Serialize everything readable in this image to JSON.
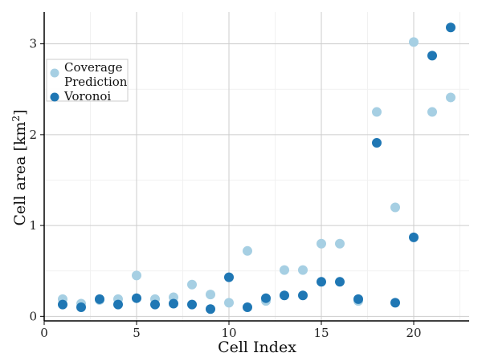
{
  "chart_data": {
    "type": "scatter",
    "title": "",
    "xlabel": "Cell Index",
    "ylabel_main": "Cell area  [km",
    "ylabel_sup": "2",
    "ylabel_close": "]",
    "xlim": [
      0,
      23
    ],
    "ylim": [
      -0.05,
      3.35
    ],
    "x_ticks": [
      0,
      5,
      10,
      15,
      20
    ],
    "x_tick_labels": [
      "0",
      "5",
      "10",
      "15",
      "20"
    ],
    "y_ticks": [
      0,
      1,
      2,
      3
    ],
    "y_tick_labels": [
      "0",
      "1",
      "2",
      "3"
    ],
    "grid": true,
    "legend_position": "top-left",
    "x": [
      1,
      2,
      3,
      4,
      5,
      6,
      7,
      8,
      9,
      10,
      11,
      12,
      13,
      14,
      15,
      16,
      17,
      18,
      19,
      20,
      21,
      22
    ],
    "series": [
      {
        "name": "Coverage Prediction",
        "legend_lines": [
          "Coverage",
          "Prediction"
        ],
        "color": "#a6cfe3",
        "values": [
          0.19,
          0.14,
          0.18,
          0.19,
          0.45,
          0.19,
          0.21,
          0.35,
          0.24,
          0.15,
          0.72,
          0.17,
          0.51,
          0.51,
          0.8,
          0.8,
          0.17,
          2.25,
          1.2,
          3.02,
          2.25,
          2.41
        ]
      },
      {
        "name": "Voronoi",
        "legend_lines": [
          "Voronoi"
        ],
        "color": "#1f77b4",
        "values": [
          0.13,
          0.1,
          0.19,
          0.13,
          0.2,
          0.13,
          0.14,
          0.13,
          0.08,
          0.43,
          0.1,
          0.2,
          0.23,
          0.23,
          0.38,
          0.38,
          0.19,
          1.91,
          0.15,
          0.87,
          2.87,
          3.18
        ]
      }
    ]
  }
}
